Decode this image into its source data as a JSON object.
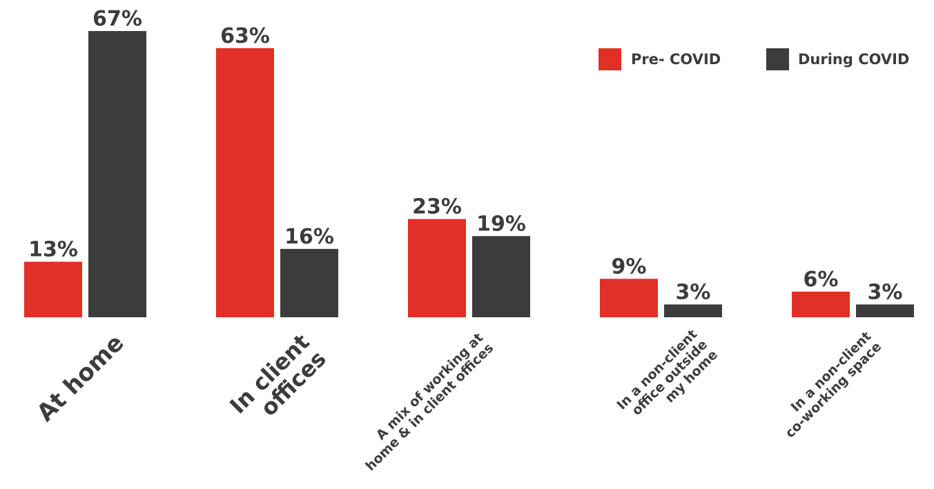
{
  "chart_data": {
    "type": "bar",
    "title": "",
    "xlabel": "",
    "ylabel": "",
    "ylim": [
      0,
      67
    ],
    "grid": false,
    "legend_position": "top-right",
    "categories": [
      [
        "At home"
      ],
      [
        "In client",
        "offices"
      ],
      [
        "A mix of working at",
        "home & in client offices"
      ],
      [
        "In a non-client",
        "office outside",
        "my home"
      ],
      [
        "In a non-client",
        "co-working space"
      ]
    ],
    "series": [
      {
        "name": "Pre- COVID",
        "color": "#e03028",
        "values": [
          13,
          63,
          23,
          9,
          6
        ],
        "labels": [
          "13%",
          "63%",
          "23%",
          "9%",
          "6%"
        ]
      },
      {
        "name": "During COVID",
        "color": "#3c3c3c",
        "values": [
          67,
          16,
          19,
          3,
          3
        ],
        "labels": [
          "67%",
          "16%",
          "19%",
          "3%",
          "3%"
        ]
      }
    ]
  }
}
